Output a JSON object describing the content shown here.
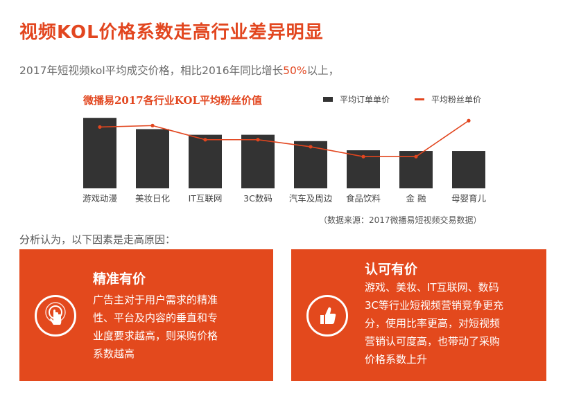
{
  "header": {
    "title": "视频KOL价格系数走高行业差异明显",
    "subtitle_pre": "2017年短视频kol平均成交价格，相比2016年同比增长",
    "subtitle_highlight": "50%",
    "subtitle_post": "以上，"
  },
  "colors": {
    "accent": "#e2461f",
    "bar": "#333333",
    "box": "#e3491d"
  },
  "chart_data": {
    "type": "bar",
    "title": "微播易2017各行业KOL平均粉丝价值",
    "categories": [
      "游戏动漫",
      "美妆日化",
      "IT互联网",
      "3C数码",
      "汽车及周边",
      "食品饮料",
      "金 融",
      "母婴育儿"
    ],
    "series": [
      {
        "name": "平均订单单价",
        "type": "bar",
        "values": [
          100,
          84,
          76,
          76,
          67,
          54,
          53,
          53
        ]
      },
      {
        "name": "平均粉丝单价",
        "type": "line",
        "values": [
          87,
          89,
          69,
          69,
          59,
          45,
          45,
          96
        ]
      }
    ],
    "ylim": [
      0,
      110
    ],
    "legend": "top-right",
    "grid": false
  },
  "source_note": "（数据来源：2017微播易短视频交易数据）",
  "analysis_intro": "分析认为，以下因素是走高原因：",
  "boxes": [
    {
      "heading": "精准有价",
      "lines": [
        "广告主对于用户需求的精准",
        "性、平台及内容的垂直和专",
        "业度要求越高，则采购价格",
        "系数越高"
      ],
      "icon": "touch-hand-icon"
    },
    {
      "heading": "认可有价",
      "lines": [
        "游戏、美妆、IT互联网、数码",
        "3C等行业短视频营销竞争更充",
        "分，使用比率更高，对短视频",
        "营销认可度高，也带动了采购",
        "价格系数上升"
      ],
      "icon": "thumbs-up-icon"
    }
  ]
}
